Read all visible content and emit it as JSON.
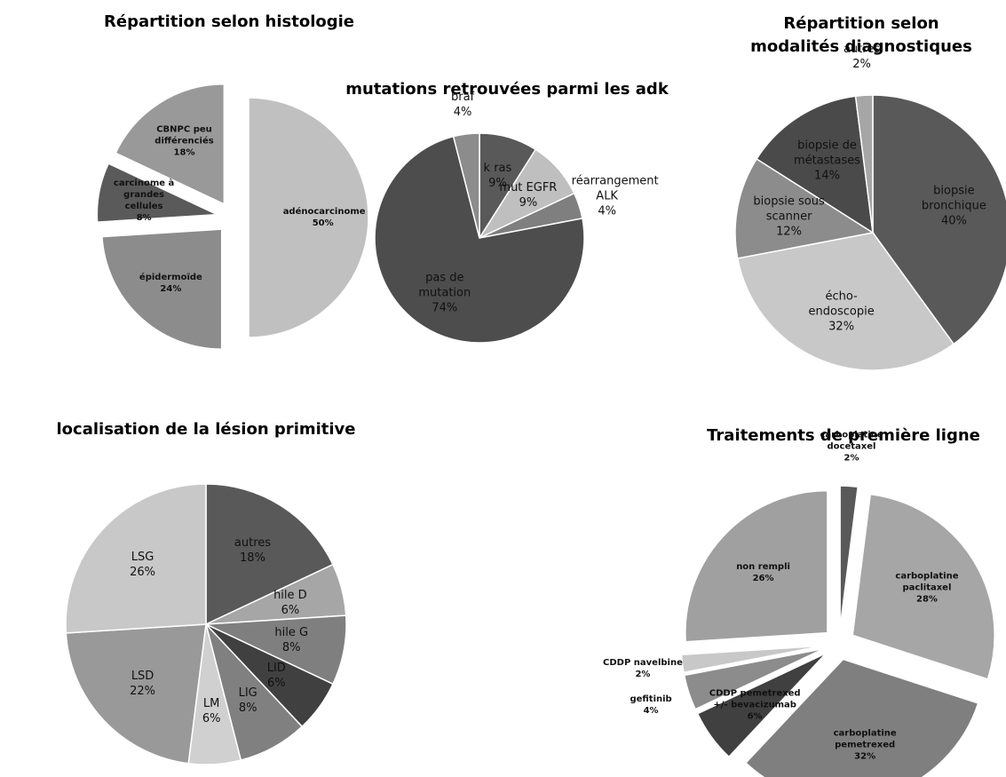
{
  "chart_data": [
    {
      "type": "pie",
      "title": "Répartition selon histologie",
      "exploded": true,
      "categories": [
        "adénocarcinome",
        "épidermoïde",
        "carcinome à grandes cellules",
        "CBNPC peu différenciés"
      ],
      "values": [
        50,
        24,
        8,
        18
      ],
      "value_labels": [
        "50%",
        "24%",
        "8%",
        "18%"
      ],
      "colors": [
        "#c0c0c0",
        "#8c8c8c",
        "#5a5a5a",
        "#999999"
      ]
    },
    {
      "type": "pie",
      "title": "mutations retrouvées parmi les adk",
      "exploded": false,
      "categories": [
        "k ras",
        "mut EGFR",
        "réarrangement ALK",
        "pas de mutation",
        "braf"
      ],
      "values": [
        9,
        9,
        4,
        74,
        4
      ],
      "value_labels": [
        "9%",
        "9%",
        "4%",
        "74%",
        "4%"
      ],
      "colors": [
        "#595959",
        "#bfbfbf",
        "#7f7f7f",
        "#4d4d4d",
        "#8c8c8c"
      ]
    },
    {
      "type": "pie",
      "title": "Répartition selon modalités diagnostiques",
      "exploded": false,
      "categories": [
        "biopsie bronchique",
        "écho-endoscopie",
        "biopsie sous scanner",
        "biopsie de métastases",
        "autres"
      ],
      "values": [
        40,
        32,
        12,
        14,
        2
      ],
      "value_labels": [
        "40%",
        "32%",
        "12%",
        "14%",
        "2%"
      ],
      "colors": [
        "#595959",
        "#c8c8c8",
        "#8c8c8c",
        "#4a4a4a",
        "#a6a6a6"
      ]
    },
    {
      "type": "pie",
      "title": "localisation de la lésion primitive",
      "exploded": false,
      "categories": [
        "autres",
        "hile D",
        "hile G",
        "LID",
        "LIG",
        "LM",
        "LSD",
        "LSG"
      ],
      "values": [
        18,
        6,
        8,
        6,
        8,
        6,
        22,
        26
      ],
      "value_labels": [
        "18%",
        "6%",
        "8%",
        "6%",
        "8%",
        "6%",
        "22%",
        "26%"
      ],
      "colors": [
        "#595959",
        "#a6a6a6",
        "#7f7f7f",
        "#404040",
        "#808080",
        "#d0d0d0",
        "#999999",
        "#c8c8c8"
      ]
    },
    {
      "type": "pie",
      "title": "Traitements de première ligne",
      "exploded": true,
      "categories": [
        "carboplatine docetaxel",
        "carboplatine paclitaxel",
        "carboplatine pemetrexed",
        "CDDP pemetrexed +/- bevacizumab",
        "gefitinib",
        "CDDP navelbine",
        "non rempli"
      ],
      "values": [
        2,
        28,
        32,
        6,
        4,
        2,
        26
      ],
      "value_labels": [
        "2%",
        "28%",
        "32%",
        "6%",
        "4%",
        "2%",
        "26%"
      ],
      "colors": [
        "#595959",
        "#a6a6a6",
        "#7f7f7f",
        "#404040",
        "#8c8c8c",
        "#c8c8c8",
        "#a0a0a0"
      ]
    }
  ]
}
